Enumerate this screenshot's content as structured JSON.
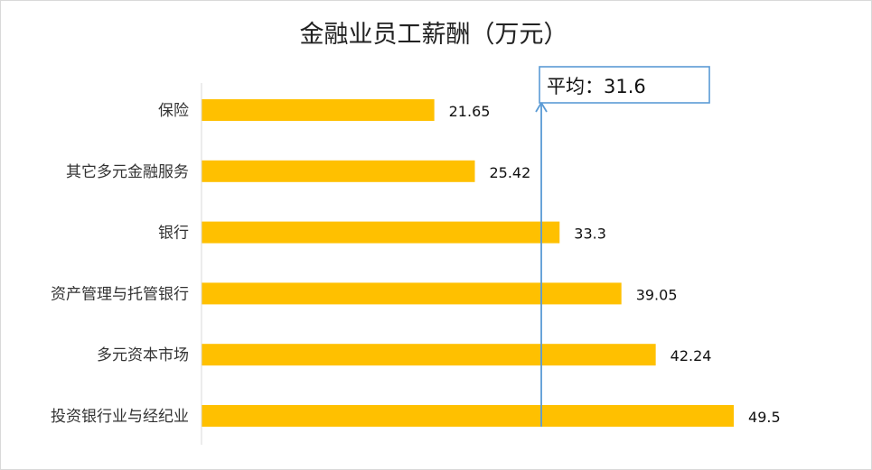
{
  "chart_data": {
    "type": "bar",
    "orientation": "horizontal",
    "title": "金融业员工薪酬（万元）",
    "categories": [
      "保险",
      "其它多元金融服务",
      "银行",
      "资产管理与托管银行",
      "多元资本市场",
      "投资银行业与经纪业"
    ],
    "values": [
      21.65,
      25.42,
      33.3,
      39.05,
      42.24,
      49.5
    ],
    "value_labels": [
      "21.65",
      "25.42",
      "33.3",
      "39.05",
      "42.24",
      "49.5"
    ],
    "xlim": [
      0,
      53
    ],
    "grid": false,
    "bar_color": "#FFC000",
    "average": {
      "value": 31.6,
      "label": "平均：31.6",
      "line_color": "#5B9BD5"
    }
  }
}
